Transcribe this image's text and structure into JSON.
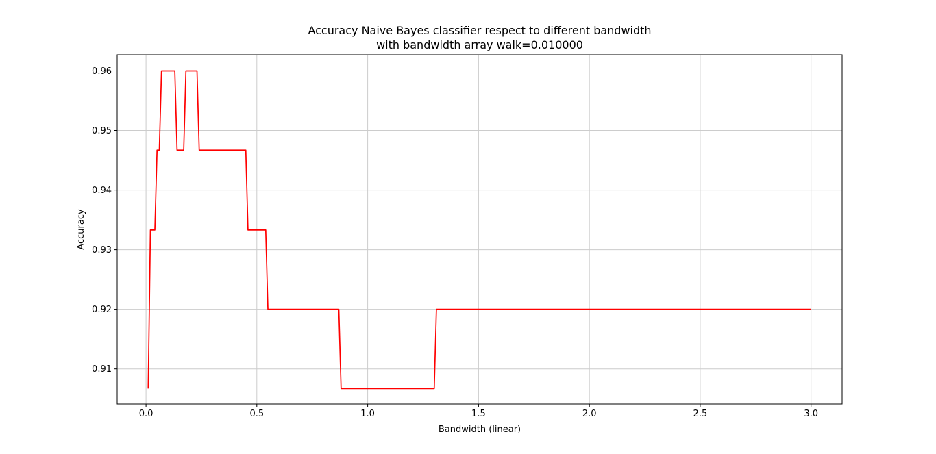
{
  "chart_data": {
    "type": "line",
    "title_line1": "Accuracy Naive Bayes classifier respect to different bandwidth",
    "title_line2": "with bandwidth array walk=0.010000",
    "xlabel": "Bandwidth (linear)",
    "ylabel": "Accuracy",
    "xlim": [
      -0.13,
      3.14
    ],
    "ylim": [
      0.9041,
      0.9627
    ],
    "x_ticks": [
      0.0,
      0.5,
      1.0,
      1.5,
      2.0,
      2.5,
      3.0
    ],
    "x_tick_labels": [
      "0.0",
      "0.5",
      "1.0",
      "1.5",
      "2.0",
      "2.5",
      "3.0"
    ],
    "y_ticks": [
      0.91,
      0.92,
      0.93,
      0.94,
      0.95,
      0.96
    ],
    "y_tick_labels": [
      "0.91",
      "0.92",
      "0.93",
      "0.94",
      "0.95",
      "0.96"
    ],
    "grid": true,
    "color": "#ff0000",
    "series": [
      {
        "x": [
          0.01,
          0.02,
          0.04,
          0.05,
          0.06,
          0.07,
          0.13,
          0.14,
          0.17,
          0.18,
          0.23,
          0.24,
          0.45,
          0.46,
          0.54,
          0.55,
          0.87,
          0.88,
          1.3,
          1.31,
          3.0
        ],
        "y": [
          0.9067,
          0.9333,
          0.9333,
          0.9467,
          0.9467,
          0.96,
          0.96,
          0.9467,
          0.9467,
          0.96,
          0.96,
          0.9467,
          0.9467,
          0.9333,
          0.9333,
          0.92,
          0.92,
          0.9067,
          0.9067,
          0.92,
          0.92
        ]
      }
    ]
  }
}
